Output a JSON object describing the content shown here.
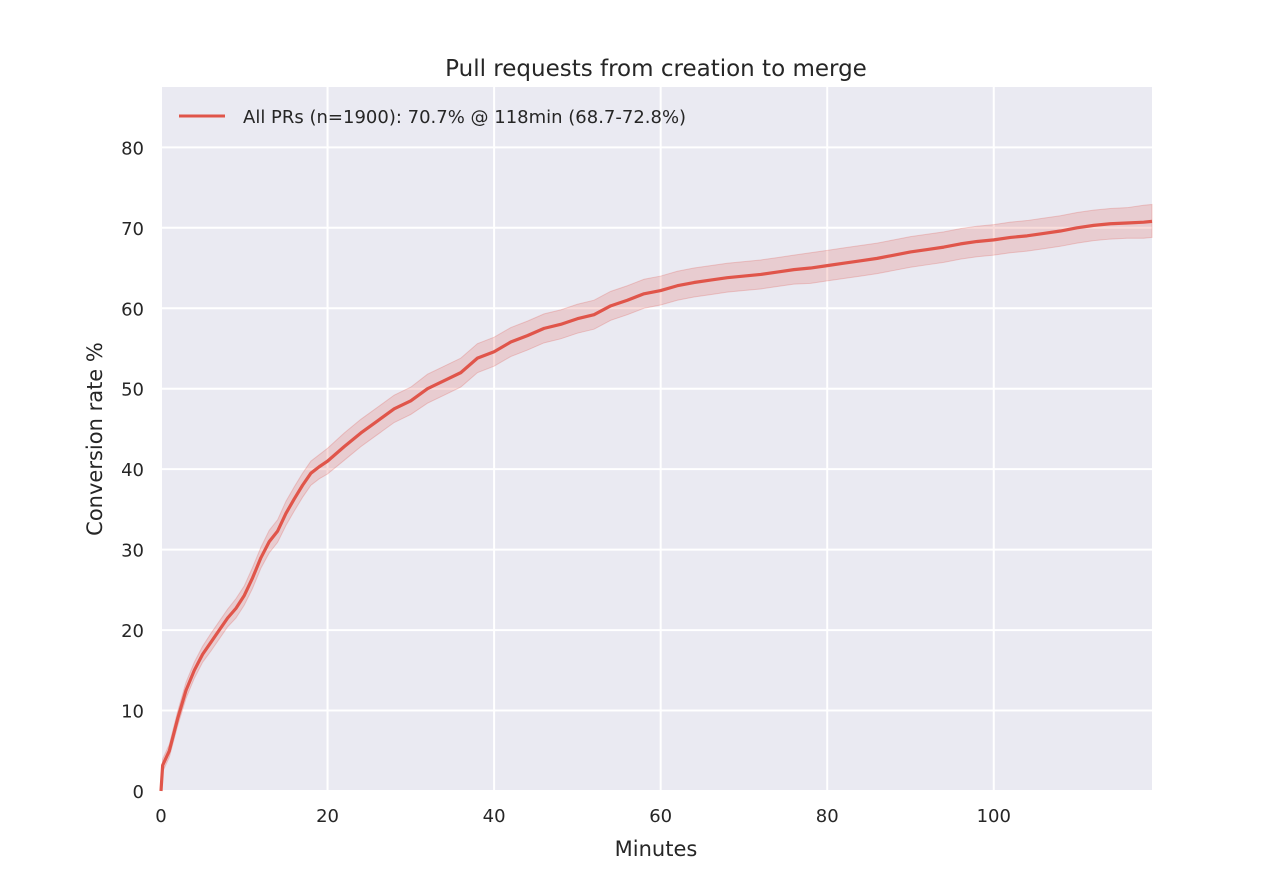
{
  "chart_data": {
    "type": "line",
    "title": "Pull requests from creation to merge",
    "xlabel": "Minutes",
    "ylabel": "Conversion rate %",
    "xlim": [
      0,
      119
    ],
    "ylim": [
      0,
      87.5
    ],
    "x_ticks": [
      0,
      20,
      40,
      60,
      80,
      100
    ],
    "y_ticks": [
      0,
      10,
      20,
      30,
      40,
      50,
      60,
      70,
      80
    ],
    "grid": true,
    "legend_position": "top-left",
    "colors": {
      "background": "#eaeaf2",
      "grid": "#ffffff",
      "line": "#e0554a",
      "band": "#e0554a"
    },
    "series": [
      {
        "name": "All PRs (n=1900): 70.7% @ 118min (68.7-72.8%)",
        "x": [
          0,
          0.2,
          1,
          2,
          3,
          4,
          5,
          6,
          7,
          8,
          9,
          10,
          11,
          12,
          13,
          14,
          15,
          16,
          17,
          18,
          19,
          20,
          22,
          24,
          26,
          28,
          30,
          32,
          34,
          36,
          38,
          40,
          42,
          44,
          46,
          48,
          50,
          52,
          54,
          56,
          58,
          60,
          62,
          64,
          66,
          68,
          70,
          72,
          74,
          76,
          78,
          80,
          82,
          84,
          86,
          88,
          90,
          92,
          94,
          96,
          98,
          100,
          102,
          104,
          106,
          108,
          110,
          112,
          114,
          116,
          118,
          119
        ],
        "y": [
          0,
          3.2,
          5,
          9,
          12.5,
          15,
          17,
          18.5,
          20,
          21.5,
          22.7,
          24.3,
          26.5,
          29,
          31,
          32.3,
          34.5,
          36.3,
          38,
          39.5,
          40.3,
          41,
          42.8,
          44.5,
          46,
          47.5,
          48.5,
          50,
          51,
          52,
          53.8,
          54.6,
          55.8,
          56.6,
          57.5,
          58,
          58.7,
          59.2,
          60.3,
          61,
          61.8,
          62.2,
          62.8,
          63.2,
          63.5,
          63.8,
          64,
          64.2,
          64.5,
          64.8,
          65,
          65.3,
          65.6,
          65.9,
          66.2,
          66.6,
          67,
          67.3,
          67.6,
          68,
          68.3,
          68.5,
          68.8,
          69,
          69.3,
          69.6,
          70,
          70.3,
          70.5,
          70.6,
          70.7,
          70.8
        ],
        "lower": [
          0,
          2.4,
          4.2,
          8.1,
          11.5,
          14,
          16,
          17.4,
          18.9,
          20.4,
          21.5,
          23.1,
          25.2,
          27.7,
          29.6,
          30.9,
          33,
          34.8,
          36.5,
          38,
          38.8,
          39.4,
          41.1,
          42.8,
          44.3,
          45.8,
          46.8,
          48.2,
          49.2,
          50.2,
          52,
          52.8,
          54,
          54.8,
          55.7,
          56.2,
          56.9,
          57.4,
          58.5,
          59.2,
          60,
          60.4,
          61,
          61.4,
          61.7,
          62,
          62.2,
          62.4,
          62.7,
          63,
          63.1,
          63.4,
          63.7,
          64,
          64.3,
          64.7,
          65.1,
          65.4,
          65.7,
          66.1,
          66.4,
          66.6,
          66.9,
          67.1,
          67.4,
          67.7,
          68.1,
          68.4,
          68.6,
          68.7,
          68.7,
          68.8
        ],
        "upper": [
          0,
          4.0,
          5.8,
          9.9,
          13.5,
          16,
          18,
          19.6,
          21.1,
          22.6,
          23.9,
          25.5,
          27.8,
          30.3,
          32.4,
          33.7,
          36,
          37.8,
          39.5,
          41,
          41.8,
          42.6,
          44.5,
          46.2,
          47.7,
          49.2,
          50.2,
          51.8,
          52.8,
          53.8,
          55.6,
          56.4,
          57.6,
          58.4,
          59.3,
          59.8,
          60.5,
          61,
          62.1,
          62.8,
          63.6,
          64,
          64.6,
          65,
          65.3,
          65.6,
          65.8,
          66,
          66.3,
          66.6,
          66.9,
          67.2,
          67.5,
          67.8,
          68.1,
          68.5,
          68.9,
          69.2,
          69.5,
          69.9,
          70.2,
          70.4,
          70.7,
          70.9,
          71.2,
          71.5,
          71.9,
          72.2,
          72.4,
          72.5,
          72.8,
          72.9
        ]
      }
    ]
  }
}
